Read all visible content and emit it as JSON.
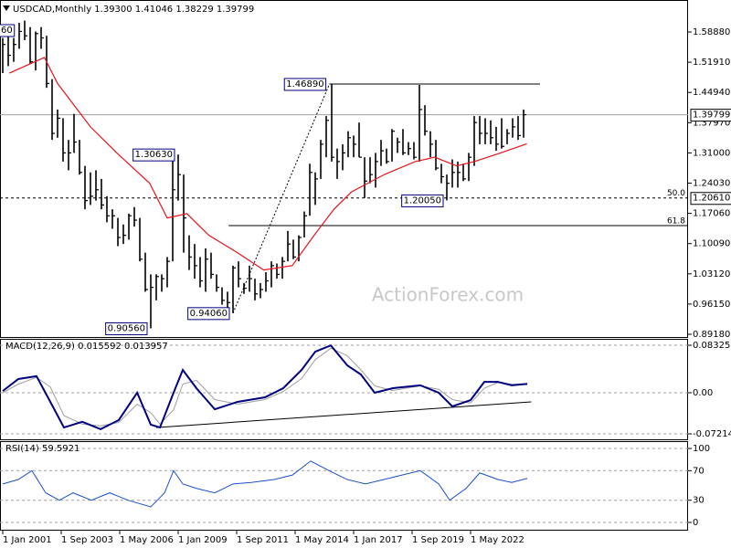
{
  "chart_data": [
    {
      "type": "ohlc",
      "title": "USDCAD,Monthly 1.39300 1.41046 1.38229 1.39799",
      "color": "#000000",
      "x": [
        2001.0,
        2001.25,
        2001.5,
        2001.75,
        2002.0,
        2002.25,
        2002.5,
        2002.75,
        2003.0,
        2003.25,
        2003.5,
        2003.75,
        2004.0,
        2004.25,
        2004.5,
        2004.75,
        2005.0,
        2005.25,
        2005.5,
        2005.75,
        2006.0,
        2006.25,
        2006.5,
        2006.75,
        2007.0,
        2007.25,
        2007.5,
        2007.75,
        2008.0,
        2008.25,
        2008.5,
        2008.75,
        2009.0,
        2009.25,
        2009.5,
        2009.75,
        2010.0,
        2010.25,
        2010.5,
        2010.75,
        2011.0,
        2011.25,
        2011.5,
        2011.75,
        2012.0,
        2012.25,
        2012.5,
        2012.75,
        2013.0,
        2013.25,
        2013.5,
        2013.75,
        2014.0,
        2014.25,
        2014.5,
        2014.75,
        2015.0,
        2015.25,
        2015.5,
        2015.75,
        2016.0,
        2016.25,
        2016.5,
        2016.75,
        2017.0,
        2017.25,
        2017.5,
        2017.75,
        2018.0,
        2018.25,
        2018.5,
        2018.75,
        2019.0,
        2019.25,
        2019.5,
        2019.75,
        2020.0,
        2020.25,
        2020.5,
        2020.75,
        2021.0,
        2021.25,
        2021.5,
        2021.75,
        2022.0,
        2022.25,
        2022.5,
        2022.75,
        2023.0,
        2023.25,
        2023.5,
        2023.75,
        2024.0,
        2024.25,
        2024.5,
        2024.75
      ],
      "high": [
        1.575,
        1.59,
        1.575,
        1.61,
        1.615,
        1.6,
        1.59,
        1.6,
        1.58,
        1.48,
        1.41,
        1.39,
        1.34,
        1.4,
        1.34,
        1.28,
        1.265,
        1.27,
        1.25,
        1.21,
        1.18,
        1.16,
        1.145,
        1.17,
        1.185,
        1.16,
        1.08,
        1.03,
        1.03,
        1.03,
        1.07,
        1.3,
        1.3063,
        1.26,
        1.12,
        1.1,
        1.07,
        1.09,
        1.08,
        1.03,
        1.0,
        0.99,
        1.05,
        1.06,
        1.01,
        1.05,
        1.02,
        1.01,
        1.035,
        1.06,
        1.055,
        1.07,
        1.13,
        1.11,
        1.12,
        1.175,
        1.285,
        1.265,
        1.34,
        1.395,
        1.4689,
        1.32,
        1.33,
        1.36,
        1.35,
        1.38,
        1.3,
        1.3,
        1.31,
        1.34,
        1.32,
        1.365,
        1.345,
        1.365,
        1.335,
        1.335,
        1.4667,
        1.42,
        1.36,
        1.34,
        1.285,
        1.26,
        1.295,
        1.29,
        1.285,
        1.31,
        1.395,
        1.395,
        1.39,
        1.385,
        1.37,
        1.39,
        1.365,
        1.39,
        1.395,
        1.41
      ],
      "low": [
        1.494,
        1.51,
        1.52,
        1.55,
        1.57,
        1.515,
        1.5,
        1.55,
        1.46,
        1.34,
        1.345,
        1.29,
        1.27,
        1.31,
        1.26,
        1.18,
        1.19,
        1.2,
        1.18,
        1.15,
        1.135,
        1.095,
        1.1,
        1.11,
        1.14,
        1.06,
        0.99,
        0.9056,
        0.97,
        0.99,
        1.0,
        1.06,
        1.2,
        1.08,
        1.04,
        1.02,
        1.0,
        0.99,
        1.02,
        0.99,
        0.96,
        0.945,
        0.9406,
        1.0,
        0.985,
        0.99,
        0.97,
        0.975,
        0.99,
        1.0,
        1.02,
        1.02,
        1.06,
        1.065,
        1.06,
        1.115,
        1.165,
        1.19,
        1.25,
        1.3,
        1.29,
        1.25,
        1.27,
        1.3,
        1.3,
        1.3,
        1.2061,
        1.24,
        1.23,
        1.28,
        1.285,
        1.29,
        1.31,
        1.305,
        1.305,
        1.295,
        1.29,
        1.35,
        1.3,
        1.27,
        1.24,
        1.2005,
        1.23,
        1.23,
        1.245,
        1.245,
        1.28,
        1.33,
        1.33,
        1.33,
        1.315,
        1.32,
        1.33,
        1.345,
        1.34,
        1.345
      ],
      "close": [
        1.56,
        1.535,
        1.56,
        1.59,
        1.58,
        1.52,
        1.585,
        1.575,
        1.47,
        1.355,
        1.39,
        1.31,
        1.31,
        1.335,
        1.265,
        1.2,
        1.21,
        1.225,
        1.19,
        1.165,
        1.165,
        1.115,
        1.12,
        1.165,
        1.155,
        1.065,
        0.995,
        1.0,
        1.025,
        1.02,
        1.06,
        1.225,
        1.26,
        1.16,
        1.07,
        1.05,
        1.015,
        1.065,
        1.03,
        1.0,
        0.97,
        0.965,
        1.045,
        1.02,
        0.998,
        1.02,
        0.985,
        0.995,
        1.015,
        1.05,
        1.03,
        1.06,
        1.1,
        1.07,
        1.115,
        1.165,
        1.265,
        1.25,
        1.33,
        1.385,
        1.3,
        1.29,
        1.31,
        1.345,
        1.33,
        1.3,
        1.245,
        1.26,
        1.29,
        1.315,
        1.29,
        1.36,
        1.335,
        1.31,
        1.32,
        1.3,
        1.41,
        1.36,
        1.33,
        1.275,
        1.255,
        1.24,
        1.265,
        1.265,
        1.25,
        1.3,
        1.38,
        1.355,
        1.355,
        1.345,
        1.33,
        1.325,
        1.355,
        1.37,
        1.35,
        1.398
      ],
      "ma": {
        "color": "#e8141c",
        "x": [
          2001.3,
          2002.9,
          2003.5,
          2005.0,
          2006.2,
          2007.7,
          2008.5,
          2009.4,
          2010.4,
          2011.7,
          2012.9,
          2014.2,
          2015.2,
          2016.1,
          2016.9,
          2018.4,
          2019.8,
          2020.7,
          2021.7,
          2022.5,
          2023.7,
          2024.9
        ],
        "values": [
          1.494,
          1.53,
          1.47,
          1.37,
          1.31,
          1.24,
          1.16,
          1.17,
          1.12,
          1.08,
          1.04,
          1.05,
          1.12,
          1.18,
          1.22,
          1.26,
          1.29,
          1.3,
          1.28,
          1.29,
          1.31,
          1.331
        ]
      },
      "xlim": [
        2000.875,
        2032.25
      ],
      "ylim": [
        0.8855,
        1.6583
      ],
      "yticks": [
        {
          "value": 1.5888,
          "label": "1.58880"
        },
        {
          "value": 1.5191,
          "label": "1.51910"
        },
        {
          "value": 1.4494,
          "label": "1.44940"
        },
        {
          "value": 1.3797,
          "label": "1.37970"
        },
        {
          "value": 1.31,
          "label": "1.31000"
        },
        {
          "value": 1.2403,
          "label": "1.24030"
        },
        {
          "value": 1.1706,
          "label": "1.17060"
        },
        {
          "value": 1.1009,
          "label": "1.10090"
        },
        {
          "value": 1.0312,
          "label": "1.03120"
        },
        {
          "value": 0.9615,
          "label": "0.96150"
        },
        {
          "value": 0.8918,
          "label": "0.89180"
        }
      ],
      "xticks": [
        {
          "value": 2001.0,
          "label": "1 Jan 2001"
        },
        {
          "value": 2003.667,
          "label": "1 Sep 2003"
        },
        {
          "value": 2006.333,
          "label": "1 May 2006"
        },
        {
          "value": 2009.0,
          "label": "1 Jan 2009"
        },
        {
          "value": 2011.667,
          "label": "1 Sep 2011"
        },
        {
          "value": 2014.333,
          "label": "1 May 2014"
        },
        {
          "value": 2017.0,
          "label": "1 Jan 2017"
        },
        {
          "value": 2019.667,
          "label": "1 Sep 2019"
        },
        {
          "value": 2022.333,
          "label": "1 May 2022"
        }
      ],
      "levels": [
        {
          "value": 1.4689,
          "x": [
            2015.9,
            2025.5
          ]
        },
        {
          "value": 1.2061,
          "x": [
            2000.875,
            2032.25
          ],
          "dashed": true,
          "label": "50.0",
          "tag": "1.20610"
        },
        {
          "value": 1.1424,
          "x": [
            2011.3,
            2032.25
          ],
          "label": "61.8"
        }
      ],
      "trendline": {
        "x": [
          2011.5,
          2015.9
        ],
        "values": [
          0.9406,
          1.4689
        ]
      },
      "annotations": [
        {
          "label": "1.46890",
          "value": 1.4689,
          "x": 2015.9
        },
        {
          "label": "1.30630",
          "value": 1.3063,
          "x": 2009.0
        },
        {
          "label": "0.90560",
          "value": 0.9056,
          "x": 2007.75
        },
        {
          "label": "0.94060",
          "value": 0.9406,
          "x": 2011.5
        },
        {
          "label": "1.20050",
          "value": 1.2005,
          "x": 2021.25
        }
      ],
      "last_price": {
        "value": 1.39799,
        "label": "1.39799"
      },
      "cut_label": "60",
      "watermark": "ActionForex.com"
    },
    {
      "type": "macd",
      "title": "MACD(12,26,9) 0.015592 0.013957",
      "macd_color": "#000080",
      "signal_color": "#a0a0a0",
      "x": [
        2001.0,
        2001.71,
        2002.54,
        2003.17,
        2003.79,
        2004.63,
        2005.46,
        2006.29,
        2007.13,
        2007.75,
        2008.17,
        2008.79,
        2009.21,
        2009.83,
        2010.67,
        2011.71,
        2012.96,
        2013.79,
        2014.63,
        2015.25,
        2015.96,
        2016.71,
        2017.33,
        2017.96,
        2018.79,
        2020.04,
        2020.88,
        2021.5,
        2022.33,
        2022.96,
        2023.58,
        2024.21,
        2024.92
      ],
      "macd": [
        0.003,
        0.024,
        0.029,
        -0.016,
        -0.061,
        -0.051,
        -0.064,
        -0.048,
        0.0,
        -0.056,
        -0.061,
        0.0,
        0.04,
        0.008,
        -0.029,
        -0.016,
        -0.008,
        0.008,
        0.04,
        0.072,
        0.083,
        0.048,
        0.032,
        0.0,
        0.008,
        0.013,
        0.0,
        -0.024,
        -0.013,
        0.019,
        0.019,
        0.013,
        0.015592
      ],
      "signal": [
        0.0,
        0.015,
        0.027,
        0.01,
        -0.04,
        -0.055,
        -0.058,
        -0.052,
        -0.02,
        -0.035,
        -0.055,
        -0.03,
        0.015,
        0.022,
        -0.012,
        -0.02,
        -0.012,
        0.002,
        0.025,
        0.058,
        0.078,
        0.065,
        0.04,
        0.012,
        0.004,
        0.012,
        0.006,
        -0.012,
        -0.018,
        0.008,
        0.018,
        0.015,
        0.013957
      ],
      "trendline": {
        "x": [
          2008.0,
          2025.1
        ],
        "values": [
          -0.061,
          -0.016
        ]
      },
      "ylim": [
        -0.0817,
        0.0945
      ],
      "yticks": [
        0.083255,
        {
          "value": 0,
          "label": "0.00"
        },
        -0.072148
      ],
      "grid": true
    },
    {
      "type": "rsi",
      "title": "RSI(14) 59.5921",
      "color": "#1e50c8",
      "x": [
        2001.0,
        2001.71,
        2002.33,
        2002.96,
        2003.58,
        2004.21,
        2005.04,
        2005.88,
        2006.71,
        2007.75,
        2008.38,
        2008.79,
        2009.21,
        2009.83,
        2010.67,
        2011.5,
        2012.33,
        2013.38,
        2014.21,
        2015.04,
        2015.88,
        2016.71,
        2017.54,
        2018.38,
        2019.21,
        2020.04,
        2020.88,
        2021.38,
        2022.13,
        2022.75,
        2023.58,
        2024.21,
        2024.92
      ],
      "values": [
        52,
        58,
        70,
        40,
        30,
        40,
        30,
        40,
        30,
        21,
        40,
        70,
        52,
        46,
        40,
        52,
        54,
        58,
        64,
        83,
        70,
        58,
        52,
        58,
        64,
        70,
        52,
        30,
        46,
        67,
        58,
        54,
        59.5921
      ],
      "ylim": [
        -9.9,
        109.9
      ],
      "yticks": [
        100,
        70,
        30,
        0
      ],
      "grid": true
    }
  ]
}
